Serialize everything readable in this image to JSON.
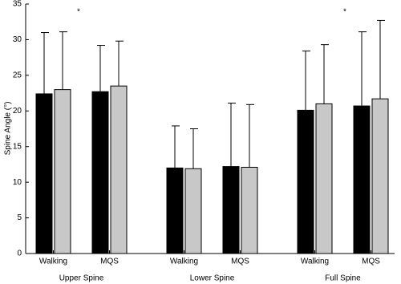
{
  "chart_data": {
    "type": "bar",
    "y_label": "Spine Angle (°)",
    "categories": [
      "Walking",
      "MQS",
      "Walking",
      "MQS",
      "Walking",
      "MQS"
    ],
    "groups": [
      "Upper Spine",
      "Lower Spine",
      "Full Spine"
    ],
    "series": [
      {
        "color": "#000000",
        "values": [
          22.4,
          22.7,
          12.0,
          12.2,
          20.1,
          20.7
        ],
        "errors": [
          8.6,
          6.5,
          5.9,
          8.9,
          8.3,
          10.4
        ]
      },
      {
        "color": "#c8c8c8",
        "values": [
          23.0,
          23.5,
          11.9,
          12.1,
          21.0,
          21.7
        ],
        "errors": [
          8.1,
          6.3,
          5.6,
          8.8,
          8.3,
          11.0
        ]
      }
    ],
    "annotations": [
      "*",
      "*"
    ],
    "ylim": [
      0,
      35
    ],
    "yticks": [
      0,
      5,
      10,
      15,
      20,
      25,
      30,
      35
    ]
  }
}
